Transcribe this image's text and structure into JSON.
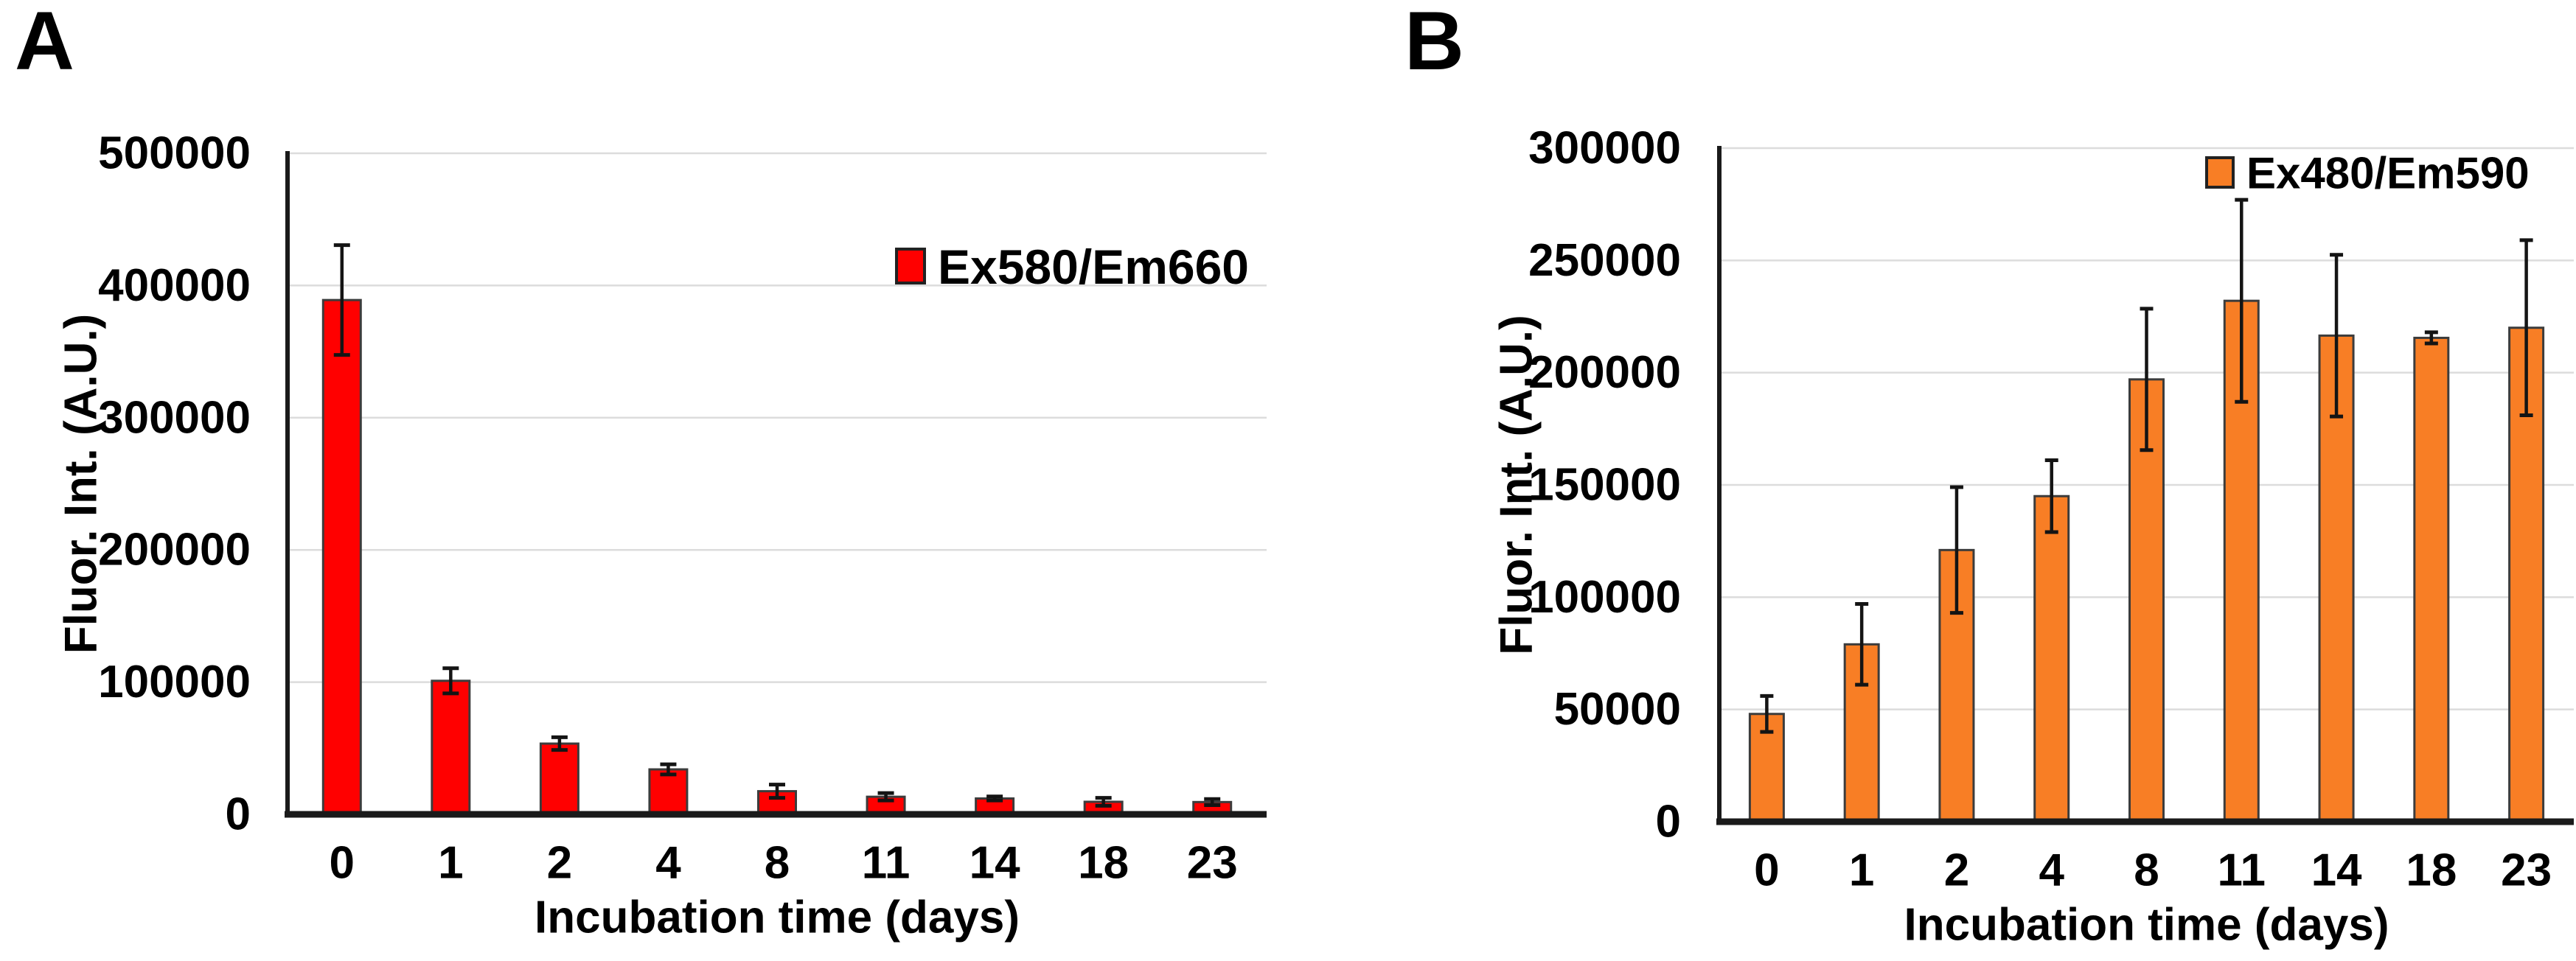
{
  "figure": {
    "background": "#ffffff",
    "panels": [
      {
        "panel_label": "A"
      },
      {
        "panel_label": "B"
      }
    ]
  },
  "chart_data": [
    {
      "type": "bar",
      "panel": "A",
      "legend_label": "Ex580/Em660",
      "legend_position": "upper-right-inside",
      "bar_color": "#FF0000",
      "bar_border_color": "#3C3C3C",
      "error_bar_color": "#141414",
      "gridline_color": "#DCDCDC",
      "axis_color": "#1A1A1A",
      "grid": true,
      "xlabel": "Incubation time (days)",
      "ylabel": "Fluor. Int. (A.U.)",
      "categories": [
        "0",
        "1",
        "2",
        "4",
        "8",
        "11",
        "14",
        "18",
        "23"
      ],
      "values": [
        389000,
        101000,
        53500,
        34000,
        17500,
        13300,
        12000,
        9500,
        9300
      ],
      "error_bars": [
        41500,
        9500,
        4800,
        3800,
        5000,
        2800,
        1500,
        3000,
        2300
      ],
      "ylim": [
        0,
        500000
      ],
      "ytick_step": 100000,
      "yticks": [
        0,
        100000,
        200000,
        300000,
        400000,
        500000
      ]
    },
    {
      "type": "bar",
      "panel": "B",
      "legend_label": "Ex480/Em590",
      "legend_position": "upper-right-inside",
      "bar_color": "#F87E25",
      "bar_border_color": "#3C3C3C",
      "error_bar_color": "#141414",
      "gridline_color": "#DCDCDC",
      "axis_color": "#1A1A1A",
      "grid": true,
      "xlabel": "Incubation time (days)",
      "ylabel": "Fluor. Int. (A.U.)",
      "categories": [
        "0",
        "1",
        "2",
        "4",
        "8",
        "11",
        "14",
        "18",
        "23"
      ],
      "values": [
        48000,
        79000,
        121000,
        145000,
        197000,
        232000,
        216500,
        215500,
        220000
      ],
      "error_bars": [
        8000,
        18000,
        28000,
        16000,
        31500,
        45000,
        36000,
        2500,
        39000
      ],
      "ylim": [
        0,
        300000
      ],
      "ytick_step": 50000,
      "yticks": [
        0,
        50000,
        100000,
        150000,
        200000,
        250000,
        300000
      ]
    }
  ]
}
